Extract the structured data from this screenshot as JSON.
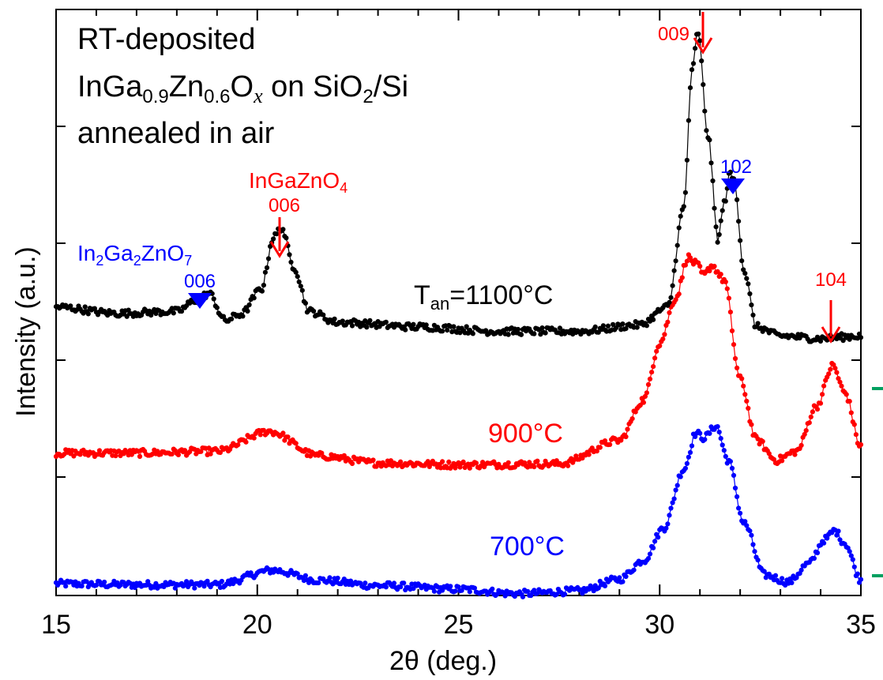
{
  "chart_data": {
    "type": "line",
    "xlabel": "2θ (deg.)",
    "ylabel": "Intensity (a.u.)",
    "xlim": [
      15,
      35
    ],
    "ylim": [
      0,
      6.5
    ],
    "x_ticks": [
      "15",
      "20",
      "25",
      "30",
      "35"
    ],
    "grid": false,
    "legend": "none",
    "title_lines": {
      "line1": "RT-deposited",
      "line2_parts": [
        "InGa",
        "0.9",
        "Zn",
        "0.6",
        "O",
        "x",
        " on SiO",
        "2",
        "/Si"
      ],
      "line3": "annealed in air"
    },
    "series": [
      {
        "name": "700°C",
        "label_text": "700°C",
        "color": "#0000ff",
        "x": [
          15,
          17,
          19,
          20.4,
          21.5,
          23,
          25,
          26.5,
          28,
          29,
          29.6,
          30.1,
          30.6,
          30.9,
          31.1,
          31.4,
          31.7,
          32.1,
          32.6,
          33.2,
          33.7,
          34.1,
          34.35,
          34.6,
          35
        ],
        "y": [
          0.13,
          0.12,
          0.12,
          0.28,
          0.17,
          0.11,
          0.07,
          0.02,
          0.05,
          0.18,
          0.39,
          0.75,
          1.4,
          1.8,
          1.75,
          1.88,
          1.5,
          0.8,
          0.23,
          0.15,
          0.35,
          0.62,
          0.72,
          0.58,
          0.17
        ]
      },
      {
        "name": "900°C",
        "label_text": "900°C",
        "color": "#ff0000",
        "x": [
          15,
          17,
          19,
          20.3,
          21.5,
          23,
          25,
          27.5,
          29,
          29.6,
          30.0,
          30.4,
          30.7,
          30.9,
          31.1,
          31.3,
          31.6,
          32.0,
          32.4,
          32.9,
          33.4,
          33.9,
          34.3,
          34.6,
          35
        ],
        "y": [
          1.58,
          1.58,
          1.6,
          1.82,
          1.55,
          1.47,
          1.45,
          1.46,
          1.72,
          2.17,
          2.8,
          3.3,
          3.75,
          3.68,
          3.55,
          3.66,
          3.5,
          2.4,
          1.73,
          1.5,
          1.6,
          2.1,
          2.55,
          2.25,
          1.65
        ]
      },
      {
        "name": "Tan=1100°C",
        "label_text": "1100°C",
        "color": "#000000",
        "x": [
          15,
          16.5,
          18.0,
          18.5,
          18.8,
          19.2,
          19.6,
          20.1,
          20.4,
          20.6,
          20.9,
          21.3,
          22,
          24,
          26,
          28,
          29.5,
          30.2,
          30.6,
          30.8,
          30.95,
          31.2,
          31.45,
          31.6,
          31.75,
          31.85,
          32.1,
          32.4,
          33,
          34,
          35
        ],
        "y": [
          3.2,
          3.13,
          3.15,
          3.28,
          3.35,
          3.05,
          3.12,
          3.4,
          3.97,
          4.08,
          3.65,
          3.15,
          3.03,
          2.98,
          2.93,
          2.93,
          3.0,
          3.2,
          4.3,
          5.8,
          6.25,
          5.1,
          3.95,
          4.35,
          4.68,
          4.6,
          3.6,
          2.98,
          2.88,
          2.85,
          2.88
        ]
      }
    ],
    "tan_label": {
      "prefix": "T",
      "sub": "an",
      "value": "=1100°C"
    },
    "annotations": {
      "ingazno4": {
        "parts": [
          "InGaZnO",
          "4"
        ],
        "color": "#ff0000"
      },
      "ingazno4_006": {
        "text": "006",
        "color": "#ff0000"
      },
      "in2ga2zno7": {
        "parts": [
          "In",
          "2",
          "Ga",
          "2",
          "ZnO",
          "7"
        ],
        "color": "#0000ff"
      },
      "in2ga2zno7_006": {
        "text": "006",
        "color": "#0000ff"
      },
      "peak_009": {
        "text": "009",
        "color": "#ff0000"
      },
      "peak_102": {
        "text": "102",
        "color": "#0000ff"
      },
      "peak_104": {
        "text": "104",
        "color": "#ff0000"
      }
    },
    "edge_marks_color": "#00a060"
  }
}
